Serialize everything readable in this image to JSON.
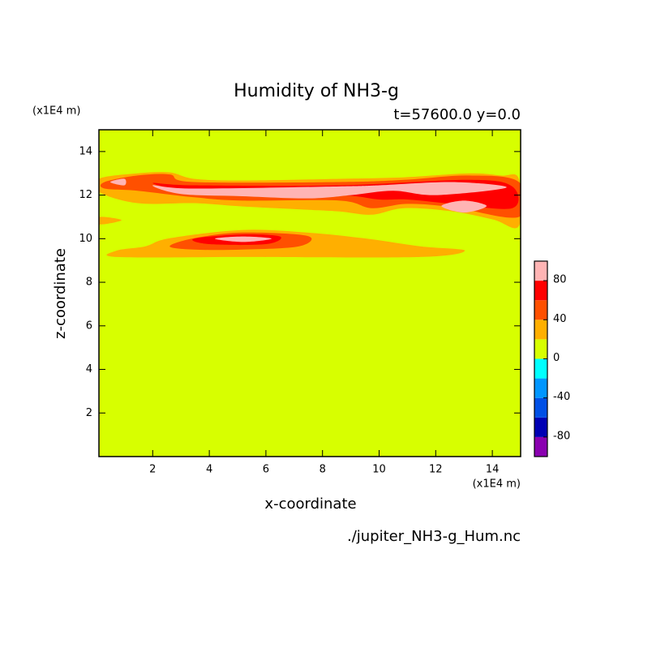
{
  "chart_data": {
    "type": "contour",
    "title": "Humidity of NH3-g",
    "subtitle": "t=57600.0 y=0.0",
    "x_label": "x-coordinate",
    "y_label": "z-coordinate",
    "x_unit": "(x1E4 m)",
    "y_unit": "(x1E4 m)",
    "source": "./jupiter_NH3-g_Hum.nc",
    "xlim": [
      0.1,
      15
    ],
    "ylim": [
      0,
      15
    ],
    "xticks": [
      2,
      4,
      6,
      8,
      10,
      12,
      14
    ],
    "yticks": [
      2,
      4,
      6,
      8,
      10,
      12,
      14
    ],
    "levels": [
      -100,
      -80,
      -60,
      -40,
      -20,
      0,
      20,
      40,
      60,
      80,
      100
    ],
    "colors": [
      "#8a00b0",
      "#0000b4",
      "#0050e6",
      "#0096ff",
      "#00ffff",
      "#d7ff00",
      "#ffaf00",
      "#ff5000",
      "#ff0000",
      "#ffb4b4"
    ],
    "colorbar_ticks": [
      -80,
      -40,
      0,
      40,
      80
    ],
    "background_level": 0,
    "regions": [
      {
        "level": 20,
        "points": [
          [
            0.09,
            12.75
          ],
          [
            1.46,
            13.0
          ],
          [
            2.6,
            13.04
          ],
          [
            3.46,
            12.75
          ],
          [
            5.17,
            12.67
          ],
          [
            8.6,
            12.75
          ],
          [
            10.89,
            12.82
          ],
          [
            13.17,
            13.0
          ],
          [
            14.31,
            12.9
          ],
          [
            14.94,
            12.75
          ],
          [
            14.94,
            10.58
          ],
          [
            14.03,
            10.88
          ],
          [
            12.6,
            11.25
          ],
          [
            10.89,
            11.4
          ],
          [
            9.74,
            11.1
          ],
          [
            8.6,
            11.25
          ],
          [
            7.46,
            11.33
          ],
          [
            5.17,
            11.48
          ],
          [
            3.46,
            11.63
          ],
          [
            1.46,
            11.63
          ],
          [
            0.09,
            12.15
          ]
        ]
      },
      {
        "level": 20,
        "points": [
          [
            0.09,
            11.0
          ],
          [
            0.9,
            10.85
          ],
          [
            0.09,
            10.65
          ]
        ]
      },
      {
        "level": 20,
        "points": [
          [
            0.74,
            9.46
          ],
          [
            1.74,
            9.65
          ],
          [
            2.6,
            10.02
          ],
          [
            5.17,
            10.4
          ],
          [
            7.46,
            10.28
          ],
          [
            9.46,
            10.02
          ],
          [
            11.46,
            9.65
          ],
          [
            13.03,
            9.46
          ],
          [
            11.46,
            9.16
          ],
          [
            5.17,
            9.16
          ],
          [
            0.74,
            9.16
          ]
        ]
      },
      {
        "level": 40,
        "points": [
          [
            0.3,
            12.6
          ],
          [
            1.46,
            12.9
          ],
          [
            2.6,
            12.95
          ],
          [
            3.46,
            12.6
          ],
          [
            8.6,
            12.6
          ],
          [
            10.89,
            12.7
          ],
          [
            13.17,
            12.9
          ],
          [
            14.94,
            12.6
          ],
          [
            14.94,
            11.0
          ],
          [
            12.6,
            11.45
          ],
          [
            11.0,
            11.6
          ],
          [
            9.74,
            11.4
          ],
          [
            8.6,
            11.75
          ],
          [
            5.17,
            11.75
          ],
          [
            3.46,
            11.9
          ],
          [
            1.46,
            12.2
          ],
          [
            0.3,
            12.3
          ]
        ]
      },
      {
        "level": 40,
        "points": [
          [
            2.6,
            9.65
          ],
          [
            3.46,
            10.02
          ],
          [
            5.17,
            10.28
          ],
          [
            7.46,
            10.13
          ],
          [
            7.17,
            9.65
          ],
          [
            5.17,
            9.5
          ],
          [
            3.46,
            9.5
          ]
        ]
      },
      {
        "level": 60,
        "points": [
          [
            2.0,
            12.55
          ],
          [
            3.46,
            12.45
          ],
          [
            8.6,
            12.45
          ],
          [
            13.17,
            12.7
          ],
          [
            14.7,
            12.4
          ],
          [
            14.7,
            11.4
          ],
          [
            12.6,
            11.6
          ],
          [
            11.0,
            11.8
          ],
          [
            10.0,
            11.8
          ],
          [
            8.6,
            12.0
          ],
          [
            5.17,
            12.0
          ],
          [
            3.46,
            12.1
          ]
        ]
      },
      {
        "level": 60,
        "points": [
          [
            3.46,
            10.0
          ],
          [
            5.17,
            10.2
          ],
          [
            6.5,
            10.1
          ],
          [
            6.0,
            9.75
          ],
          [
            4.0,
            9.75
          ]
        ]
      },
      {
        "level": 80,
        "points": [
          [
            2.0,
            12.45
          ],
          [
            3.46,
            12.3
          ],
          [
            8.6,
            12.4
          ],
          [
            10.0,
            12.45
          ],
          [
            12.6,
            12.6
          ],
          [
            14.5,
            12.35
          ],
          [
            12.0,
            12.0
          ],
          [
            10.5,
            12.2
          ],
          [
            9.0,
            12.0
          ],
          [
            7.5,
            11.85
          ],
          [
            5.17,
            11.95
          ],
          [
            3.0,
            12.05
          ]
        ]
      },
      {
        "level": 80,
        "points": [
          [
            12.2,
            11.5
          ],
          [
            13.0,
            11.75
          ],
          [
            13.8,
            11.5
          ],
          [
            13.0,
            11.2
          ]
        ]
      },
      {
        "level": 80,
        "points": [
          [
            0.5,
            12.6
          ],
          [
            1.0,
            12.75
          ],
          [
            1.0,
            12.45
          ]
        ]
      },
      {
        "level": 80,
        "points": [
          [
            4.2,
            10.0
          ],
          [
            5.2,
            10.1
          ],
          [
            6.2,
            10.0
          ],
          [
            5.2,
            9.85
          ]
        ]
      }
    ]
  }
}
